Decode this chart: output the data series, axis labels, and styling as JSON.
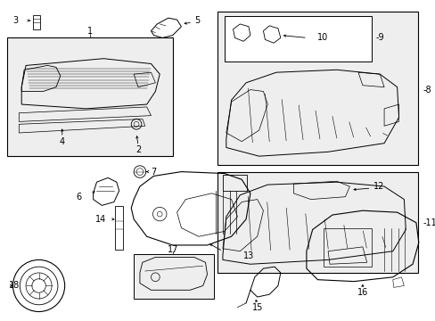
{
  "bg_color": "#ffffff",
  "fig_width": 4.89,
  "fig_height": 3.6,
  "dpi": 100,
  "lc": "#000000",
  "lc_gray": "#888888",
  "fs": 7,
  "fs_small": 6
}
